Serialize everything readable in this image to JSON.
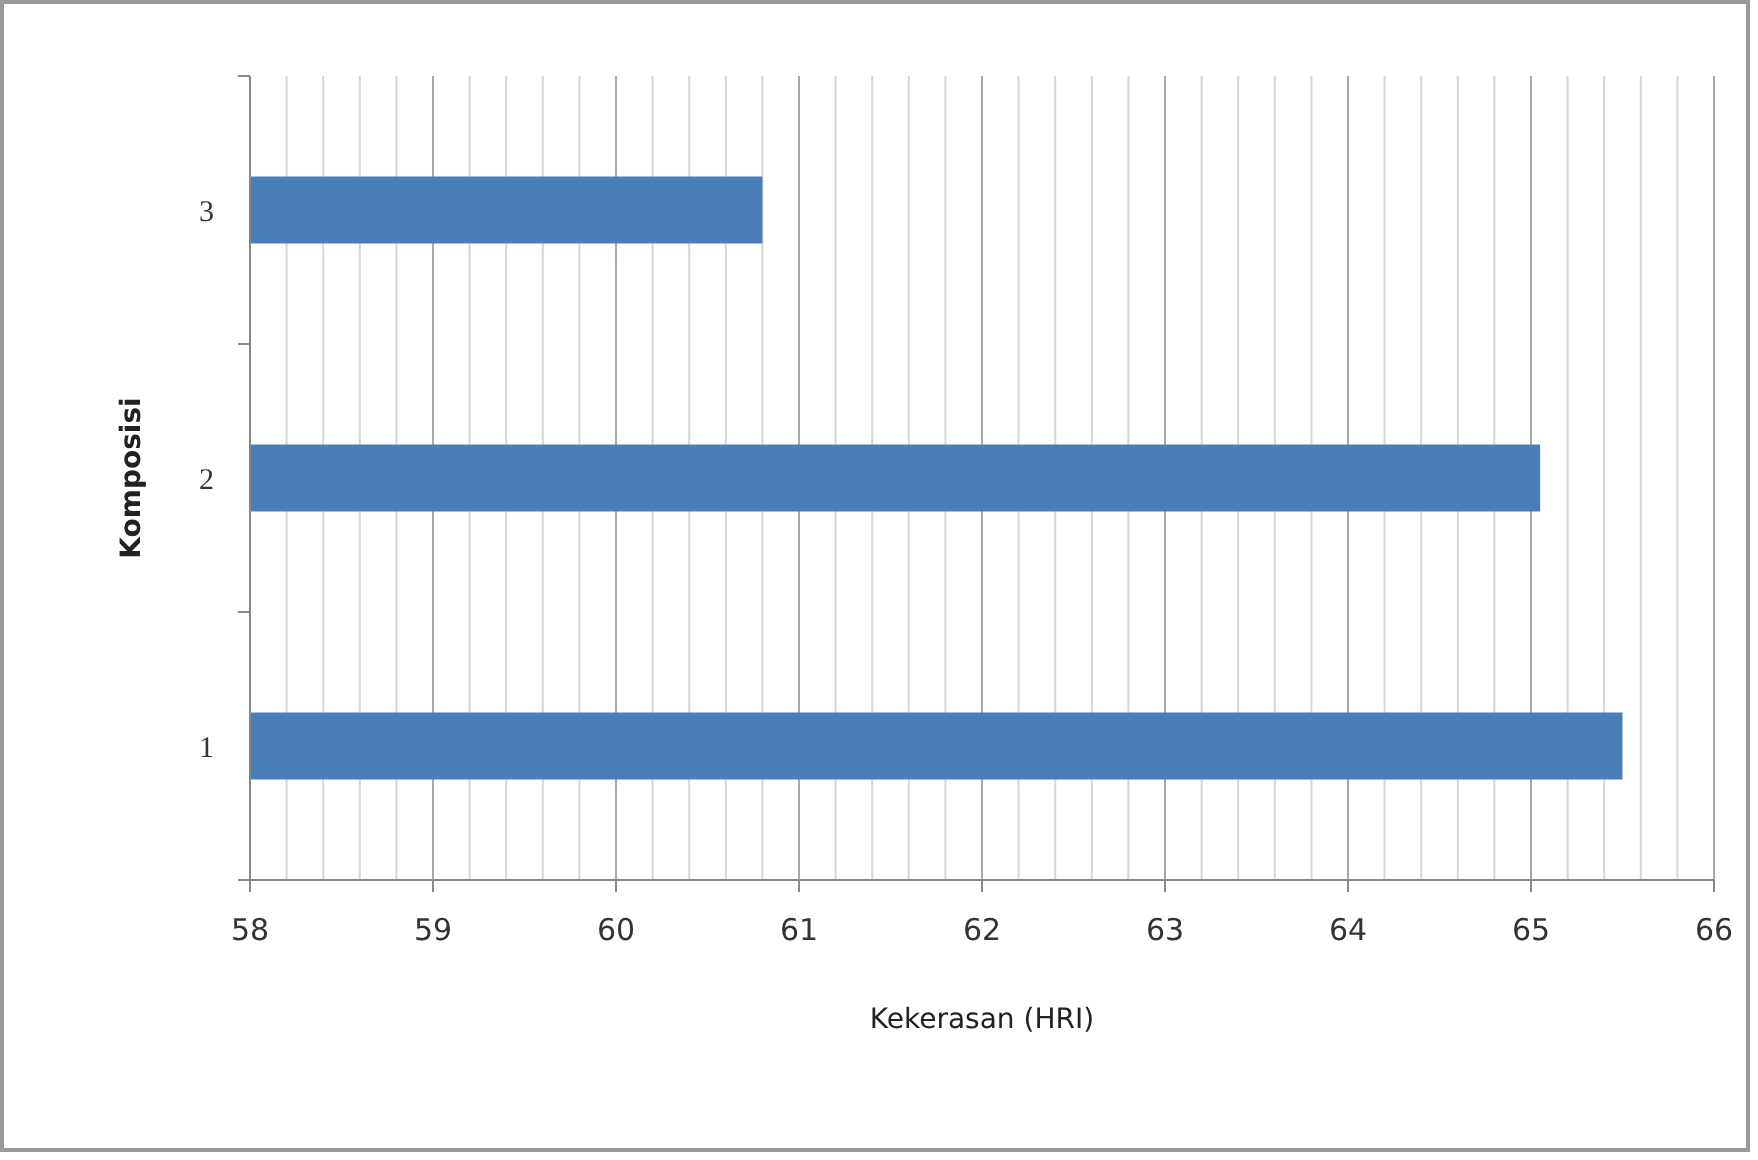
{
  "chart_data": {
    "type": "bar",
    "orientation": "horizontal",
    "categories": [
      "3",
      "2",
      "1"
    ],
    "values": [
      60.8,
      65.05,
      65.5
    ],
    "color": "#4a7ebb",
    "xlabel": "Kekerasan (HRI)",
    "ylabel": "Komposisi",
    "xlim": [
      58,
      66
    ],
    "xticks": [
      58,
      {
        "value": 58.2,
        "label": null
      },
      {
        "value": 58.4,
        "label": null
      },
      {
        "value": 58.6,
        "label": null
      },
      {
        "value": 58.8,
        "label": null
      },
      59,
      {
        "value": 59.2,
        "label": null
      },
      {
        "value": 59.4,
        "label": null
      },
      {
        "value": 59.6,
        "label": null
      },
      {
        "value": 59.8,
        "label": null
      },
      60,
      {
        "value": 60.2,
        "label": null
      },
      {
        "value": 60.4,
        "label": null
      },
      {
        "value": 60.6,
        "label": null
      },
      {
        "value": 60.8,
        "label": null
      },
      61,
      {
        "value": 61.2,
        "label": null
      },
      {
        "value": 61.4,
        "label": null
      },
      {
        "value": 61.6,
        "label": null
      },
      {
        "value": 61.8,
        "label": null
      },
      62,
      {
        "value": 62.2,
        "label": null
      },
      {
        "value": 62.4,
        "label": null
      },
      {
        "value": 62.6,
        "label": null
      },
      {
        "value": 62.8,
        "label": null
      },
      63,
      {
        "value": 63.2,
        "label": null
      },
      {
        "value": 63.4,
        "label": null
      },
      {
        "value": 63.6,
        "label": null
      },
      {
        "value": 63.8,
        "label": null
      },
      64,
      {
        "value": 64.2,
        "label": null
      },
      {
        "value": 64.4,
        "label": null
      },
      {
        "value": 64.6,
        "label": null
      },
      {
        "value": 64.8,
        "label": null
      },
      65,
      {
        "value": 65.2,
        "label": null
      },
      {
        "value": 65.4,
        "label": null
      },
      {
        "value": 65.6,
        "label": null
      },
      {
        "value": 65.8,
        "label": null
      },
      66
    ],
    "grid": "x"
  }
}
